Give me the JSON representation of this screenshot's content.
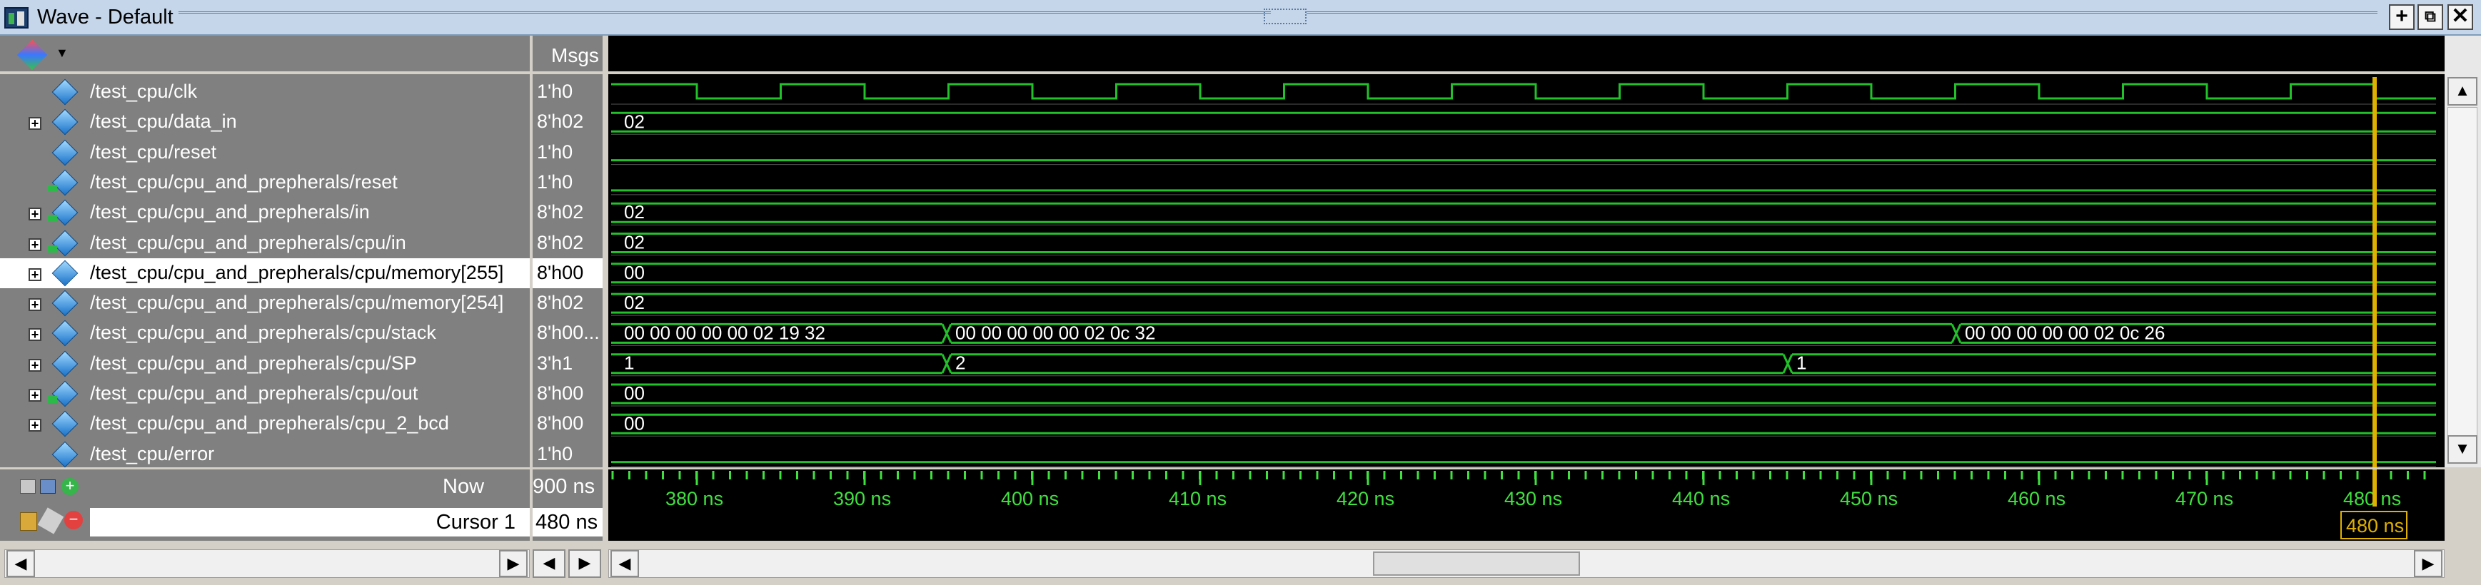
{
  "window": {
    "title": "Wave - Default"
  },
  "header": {
    "msgs_label": "Msgs"
  },
  "signals": [
    {
      "name": "/test_cpu/clk",
      "value": "1'h0",
      "expand": false,
      "icon": "signal-diamond-icon"
    },
    {
      "name": "/test_cpu/data_in",
      "value": "8'h02",
      "expand": true,
      "icon": "signal-diamond-icon"
    },
    {
      "name": "/test_cpu/reset",
      "value": "1'h0",
      "expand": false,
      "icon": "signal-diamond-icon"
    },
    {
      "name": "/test_cpu/cpu_and_prepherals/reset",
      "value": "1'h0",
      "expand": false,
      "icon": "signal-in-icon"
    },
    {
      "name": "/test_cpu/cpu_and_prepherals/in",
      "value": "8'h02",
      "expand": true,
      "icon": "signal-in-icon"
    },
    {
      "name": "/test_cpu/cpu_and_prepherals/cpu/in",
      "value": "8'h02",
      "expand": true,
      "icon": "signal-in-icon"
    },
    {
      "name": "/test_cpu/cpu_and_prepherals/cpu/memory[255]",
      "value": "8'h00",
      "expand": true,
      "icon": "signal-diamond-icon",
      "selected": true
    },
    {
      "name": "/test_cpu/cpu_and_prepherals/cpu/memory[254]",
      "value": "8'h02",
      "expand": true,
      "icon": "signal-diamond-icon"
    },
    {
      "name": "/test_cpu/cpu_and_prepherals/cpu/stack",
      "value": "8'h00...",
      "expand": true,
      "icon": "signal-diamond-icon"
    },
    {
      "name": "/test_cpu/cpu_and_prepherals/cpu/SP",
      "value": "3'h1",
      "expand": true,
      "icon": "signal-diamond-icon"
    },
    {
      "name": "/test_cpu/cpu_and_prepherals/cpu/out",
      "value": "8'h00",
      "expand": true,
      "icon": "signal-out-icon"
    },
    {
      "name": "/test_cpu/cpu_and_prepherals/cpu_2_bcd",
      "value": "8'h00",
      "expand": true,
      "icon": "signal-diamond-icon"
    },
    {
      "name": "/test_cpu/error",
      "value": "1'h0",
      "expand": false,
      "icon": "signal-diamond-icon"
    }
  ],
  "wave_labels": {
    "data_in": "02",
    "in": "02",
    "cpu_in": "02",
    "mem255": "00",
    "mem254": "02",
    "stack_a": "00 00 00 00 00 02 19 32",
    "stack_b": "00 00 00 00 00 02 0c 32",
    "stack_c": "00 00 00 00 00 02 0c 26",
    "sp_a": "1",
    "sp_b": "2",
    "sp_c": "1",
    "out": "00",
    "bcd": "00"
  },
  "status": {
    "now_label": "Now",
    "now_value": "900 ns",
    "cursor_label": "Cursor 1",
    "cursor_value": "480 ns",
    "cursor_marker": "480 ns"
  },
  "timeline": {
    "ticks": [
      "380 ns",
      "390 ns",
      "400 ns",
      "410 ns",
      "420 ns",
      "430 ns",
      "440 ns",
      "450 ns",
      "460 ns",
      "470 ns",
      "480 ns"
    ],
    "tick_color": "#40e040",
    "cursor_color": "#e0b000"
  },
  "colors": {
    "wave": "#22c02a",
    "bus": "#ffffff",
    "title_bg": "#c6d6ea"
  }
}
